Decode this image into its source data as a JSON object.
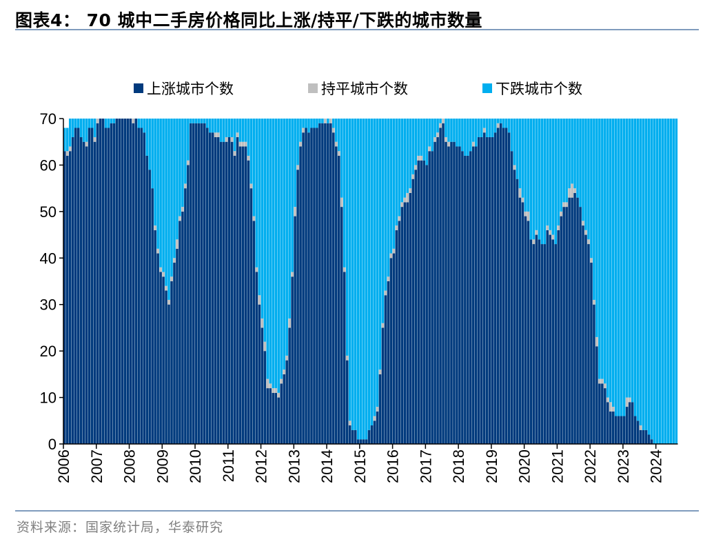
{
  "title": "图表4： 70 城中二手房价格同比上涨/持平/下跌的城市数量",
  "source": "资料来源：国家统计局，华泰研究",
  "chart_data": {
    "type": "bar",
    "stacked": true,
    "frequency": "monthly",
    "ylim": [
      0,
      70
    ],
    "yticks": [
      "0",
      "10",
      "20",
      "30",
      "40",
      "50",
      "60",
      "70"
    ],
    "xticks": [
      "2006",
      "2007",
      "2008",
      "2009",
      "2010",
      "2011",
      "2012",
      "2013",
      "2014",
      "2015",
      "2016",
      "2017",
      "2018",
      "2019",
      "2020",
      "2021",
      "2022",
      "2023",
      "2024"
    ],
    "legend_position": "top",
    "grid": false,
    "series": [
      {
        "name": "上涨城市个数",
        "color": "#003A7D",
        "values_by_year": {
          "2006": [
            63,
            62,
            63,
            66,
            68,
            68,
            66,
            65,
            64,
            68,
            68,
            65
          ],
          "2007": [
            69,
            70,
            70,
            68,
            68,
            69,
            69,
            70,
            70,
            70,
            70,
            70
          ],
          "2008": [
            70,
            69,
            70,
            68,
            68,
            67,
            62,
            59,
            55,
            46,
            41,
            37
          ],
          "2009": [
            36,
            33,
            30,
            35,
            39,
            42,
            48,
            50,
            55,
            60,
            69,
            69
          ],
          "2010": [
            69,
            69,
            69,
            69,
            68,
            67,
            67,
            66,
            66,
            65,
            65,
            65
          ],
          "2011": [
            66,
            65,
            62,
            66,
            64,
            64,
            64,
            61,
            55,
            48,
            37,
            30
          ],
          "2012": [
            25,
            20,
            12,
            12,
            11,
            11,
            10,
            13,
            15,
            18,
            25,
            36
          ],
          "2013": [
            49,
            59,
            64,
            67,
            68,
            67,
            68,
            68,
            68,
            69,
            69,
            69
          ],
          "2014": [
            69,
            69,
            67,
            64,
            62,
            51,
            37,
            18,
            4,
            3,
            3,
            1
          ],
          "2015": [
            1,
            1,
            1,
            3,
            4,
            5,
            7,
            15,
            25,
            32,
            35,
            40
          ],
          "2016": [
            41,
            46,
            48,
            51,
            52,
            52,
            54,
            57,
            59,
            61,
            61,
            61
          ],
          "2017": [
            60,
            63,
            63,
            65,
            66,
            68,
            69,
            65,
            64,
            65,
            65,
            64
          ],
          "2018": [
            64,
            63,
            62,
            62,
            63,
            64,
            64,
            66,
            66,
            67,
            66,
            66
          ],
          "2019": [
            66,
            67,
            68,
            69,
            68,
            68,
            67,
            63,
            59,
            57,
            53,
            52
          ],
          "2020": [
            49,
            48,
            44,
            43,
            45,
            44,
            43,
            43,
            46,
            45,
            44,
            43
          ],
          "2021": [
            46,
            49,
            51,
            51,
            53,
            53,
            54,
            53,
            51,
            47,
            45,
            43
          ],
          "2022": [
            39,
            30,
            21,
            13,
            13,
            12,
            9,
            7,
            7,
            6,
            6,
            6
          ],
          "2023": [
            6,
            8,
            9,
            9,
            6,
            5,
            3,
            3,
            3,
            2,
            1,
            0
          ],
          "2024": [
            0,
            0,
            0,
            0,
            0,
            0,
            0,
            0
          ]
        }
      },
      {
        "name": "持平城市个数",
        "color": "#BFBFBF",
        "values_by_year": {
          "2006": [
            0,
            1,
            1,
            0,
            0,
            0,
            0,
            0,
            1,
            0,
            0,
            1
          ],
          "2007": [
            1,
            0,
            0,
            0,
            0,
            0,
            0,
            0,
            0,
            0,
            0,
            0
          ],
          "2008": [
            0,
            1,
            0,
            0,
            0,
            0,
            0,
            0,
            0,
            1,
            1,
            1
          ],
          "2009": [
            1,
            1,
            1,
            1,
            1,
            2,
            1,
            1,
            1,
            1,
            0,
            0
          ],
          "2010": [
            0,
            0,
            0,
            0,
            0,
            0,
            0,
            1,
            1,
            0,
            0,
            1
          ],
          "2011": [
            0,
            1,
            1,
            1,
            1,
            1,
            1,
            1,
            1,
            1,
            1,
            2
          ],
          "2012": [
            2,
            2,
            2,
            1,
            1,
            1,
            1,
            1,
            1,
            1,
            2,
            1
          ],
          "2013": [
            2,
            1,
            1,
            1,
            0,
            0,
            0,
            0,
            0,
            0,
            0,
            1
          ],
          "2014": [
            0,
            1,
            1,
            1,
            1,
            2,
            1,
            1,
            1,
            0,
            0,
            0
          ],
          "2015": [
            0,
            0,
            0,
            0,
            0,
            1,
            1,
            1,
            1,
            1,
            1,
            1
          ],
          "2016": [
            1,
            1,
            1,
            1,
            1,
            2,
            1,
            1,
            1,
            1,
            1,
            0
          ],
          "2017": [
            0,
            1,
            0,
            1,
            1,
            1,
            1,
            1,
            1,
            0,
            0,
            0
          ],
          "2018": [
            0,
            0,
            0,
            0,
            0,
            1,
            0,
            0,
            0,
            1,
            0,
            0
          ],
          "2019": [
            0,
            0,
            1,
            0,
            0,
            0,
            0,
            0,
            1,
            0,
            2,
            1
          ],
          "2020": [
            1,
            2,
            0,
            1,
            1,
            0,
            0,
            0,
            1,
            1,
            1,
            0
          ],
          "2021": [
            1,
            1,
            1,
            1,
            2,
            3,
            1,
            0,
            0,
            1,
            1,
            1
          ],
          "2022": [
            1,
            1,
            2,
            1,
            1,
            1,
            1,
            2,
            1,
            0,
            0,
            0
          ],
          "2023": [
            0,
            2,
            1,
            0,
            0,
            0,
            1,
            0,
            0,
            0,
            0,
            0
          ],
          "2024": [
            0,
            0,
            0,
            0,
            0,
            0,
            0,
            0
          ]
        }
      },
      {
        "name": "下跌城市个数",
        "color": "#00AEEF",
        "values_by_year": {
          "2006": [
            5,
            5,
            6,
            4,
            2,
            2,
            4,
            5,
            5,
            2,
            2,
            4
          ],
          "2007": [
            0,
            0,
            0,
            2,
            2,
            1,
            1,
            0,
            0,
            0,
            0,
            0
          ],
          "2008": [
            0,
            0,
            0,
            2,
            2,
            3,
            8,
            11,
            15,
            23,
            28,
            32
          ],
          "2009": [
            33,
            36,
            39,
            34,
            30,
            26,
            21,
            19,
            14,
            9,
            1,
            1
          ],
          "2010": [
            1,
            1,
            1,
            1,
            2,
            3,
            3,
            3,
            3,
            5,
            5,
            4
          ],
          "2011": [
            4,
            4,
            7,
            3,
            5,
            5,
            5,
            8,
            14,
            21,
            32,
            38
          ],
          "2012": [
            43,
            48,
            56,
            57,
            58,
            58,
            59,
            56,
            54,
            51,
            43,
            33
          ],
          "2013": [
            19,
            10,
            5,
            2,
            2,
            3,
            2,
            2,
            2,
            1,
            1,
            0
          ],
          "2014": [
            1,
            0,
            2,
            5,
            7,
            17,
            32,
            51,
            65,
            67,
            67,
            69
          ],
          "2015": [
            69,
            69,
            69,
            67,
            66,
            64,
            62,
            54,
            44,
            37,
            34,
            29
          ],
          "2016": [
            28,
            23,
            21,
            18,
            17,
            16,
            15,
            12,
            10,
            8,
            8,
            9
          ],
          "2017": [
            10,
            6,
            7,
            4,
            3,
            1,
            0,
            4,
            5,
            5,
            5,
            6
          ],
          "2018": [
            6,
            7,
            8,
            8,
            7,
            5,
            6,
            4,
            4,
            2,
            4,
            4
          ],
          "2019": [
            4,
            3,
            1,
            1,
            2,
            2,
            3,
            7,
            10,
            13,
            15,
            17
          ],
          "2020": [
            20,
            20,
            26,
            26,
            24,
            26,
            27,
            27,
            23,
            24,
            25,
            27
          ],
          "2021": [
            23,
            20,
            18,
            18,
            15,
            14,
            15,
            17,
            19,
            22,
            24,
            26
          ],
          "2022": [
            30,
            39,
            47,
            56,
            56,
            57,
            60,
            61,
            62,
            64,
            64,
            64
          ],
          "2023": [
            64,
            60,
            60,
            61,
            64,
            65,
            66,
            67,
            67,
            68,
            69,
            70
          ],
          "2024": [
            70,
            70,
            70,
            70,
            70,
            70,
            70,
            70
          ]
        }
      }
    ]
  }
}
